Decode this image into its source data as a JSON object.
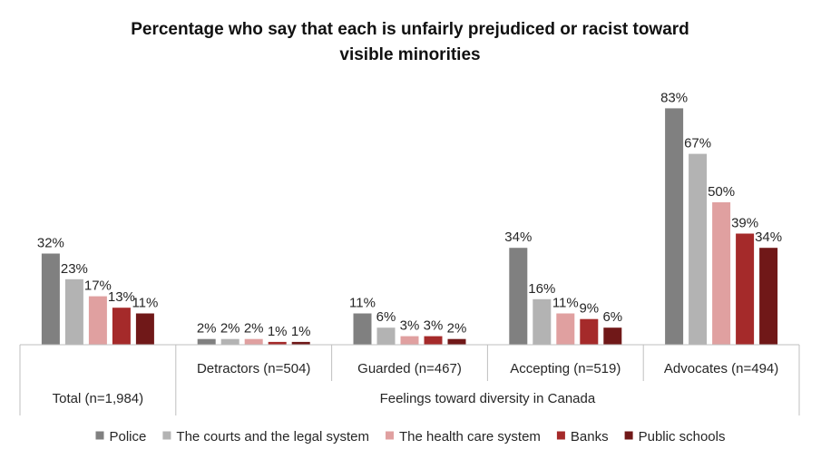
{
  "chart_data": {
    "type": "bar",
    "title_lines": [
      "Percentage who say that each is unfairly prejudiced or racist toward",
      "visible minorities"
    ],
    "categories": [
      "Total (n=1,984)",
      "Detractors (n=504)",
      "Guarded (n=467)",
      "Accepting (n=519)",
      "Advocates (n=494)"
    ],
    "group_label": "Feelings toward diversity in Canada",
    "ylim": [
      0,
      90
    ],
    "grid": false,
    "legend_position": "bottom",
    "series": [
      {
        "name": "Police",
        "color": "#808080",
        "values": [
          32,
          2,
          11,
          34,
          83
        ],
        "labels": [
          "32%",
          "2%",
          "11%",
          "34%",
          "83%"
        ]
      },
      {
        "name": "The courts and the legal system",
        "color": "#b3b3b3",
        "values": [
          23,
          2,
          6,
          16,
          67
        ],
        "labels": [
          "23%",
          "2%",
          "6%",
          "16%",
          "67%"
        ]
      },
      {
        "name": "The health care system",
        "color": "#e0a0a0",
        "values": [
          17,
          2,
          3,
          11,
          50
        ],
        "labels": [
          "17%",
          "2%",
          "3%",
          "11%",
          "50%"
        ]
      },
      {
        "name": "Banks",
        "color": "#a52a2a",
        "values": [
          13,
          1,
          3,
          9,
          39
        ],
        "labels": [
          "13%",
          "1%",
          "3%",
          "9%",
          "39%"
        ]
      },
      {
        "name": "Public schools",
        "color": "#701818",
        "values": [
          11,
          1,
          2,
          6,
          34
        ],
        "labels": [
          "11%",
          "1%",
          "2%",
          "6%",
          "34%"
        ]
      }
    ]
  }
}
